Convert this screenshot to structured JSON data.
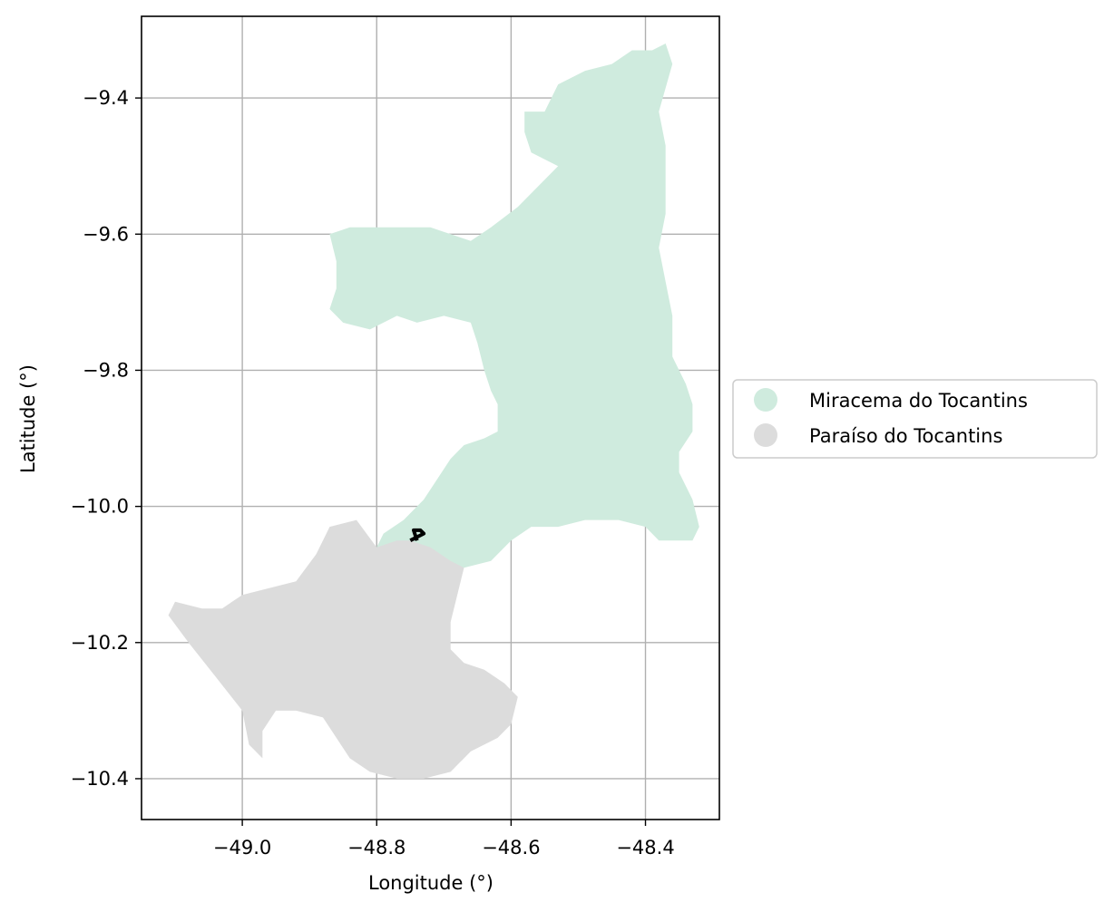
{
  "chart_data": {
    "type": "map",
    "xlabel": "Longitude (°)",
    "ylabel": "Latitude (°)",
    "xlim": [
      -49.15,
      -48.29
    ],
    "ylim": [
      -10.46,
      -9.28
    ],
    "grid": true,
    "xticks": [
      -49.0,
      -48.8,
      -48.6,
      -48.4
    ],
    "xtick_labels": [
      "−49.0",
      "−48.8",
      "−48.6",
      "−48.4"
    ],
    "yticks": [
      -9.4,
      -9.6,
      -9.8,
      -10.0,
      -10.2,
      -10.4
    ],
    "ytick_labels": [
      "−9.4",
      "−9.6",
      "−9.8",
      "−10.0",
      "−10.2",
      "−10.4"
    ],
    "legend_placement": "right, outside axes",
    "series": [
      {
        "name": "Miracema do Tocantins",
        "color": "#cfebde",
        "outline": [
          [
            -48.58,
            -9.42
          ],
          [
            -48.55,
            -9.42
          ],
          [
            -48.53,
            -9.38
          ],
          [
            -48.49,
            -9.36
          ],
          [
            -48.45,
            -9.35
          ],
          [
            -48.42,
            -9.33
          ],
          [
            -48.39,
            -9.33
          ],
          [
            -48.37,
            -9.32
          ],
          [
            -48.36,
            -9.35
          ],
          [
            -48.38,
            -9.42
          ],
          [
            -48.37,
            -9.47
          ],
          [
            -48.37,
            -9.57
          ],
          [
            -48.38,
            -9.62
          ],
          [
            -48.37,
            -9.67
          ],
          [
            -48.36,
            -9.72
          ],
          [
            -48.36,
            -9.78
          ],
          [
            -48.34,
            -9.82
          ],
          [
            -48.33,
            -9.85
          ],
          [
            -48.33,
            -9.89
          ],
          [
            -48.35,
            -9.92
          ],
          [
            -48.35,
            -9.95
          ],
          [
            -48.33,
            -9.99
          ],
          [
            -48.32,
            -10.03
          ],
          [
            -48.33,
            -10.05
          ],
          [
            -48.38,
            -10.05
          ],
          [
            -48.4,
            -10.03
          ],
          [
            -48.44,
            -10.02
          ],
          [
            -48.49,
            -10.02
          ],
          [
            -48.53,
            -10.03
          ],
          [
            -48.57,
            -10.03
          ],
          [
            -48.6,
            -10.05
          ],
          [
            -48.63,
            -10.08
          ],
          [
            -48.67,
            -10.09
          ],
          [
            -48.71,
            -10.08
          ],
          [
            -48.75,
            -10.06
          ],
          [
            -48.8,
            -10.06
          ],
          [
            -48.79,
            -10.04
          ],
          [
            -48.76,
            -10.02
          ],
          [
            -48.73,
            -9.99
          ],
          [
            -48.71,
            -9.96
          ],
          [
            -48.69,
            -9.93
          ],
          [
            -48.67,
            -9.91
          ],
          [
            -48.64,
            -9.9
          ],
          [
            -48.62,
            -9.89
          ],
          [
            -48.62,
            -9.85
          ],
          [
            -48.63,
            -9.83
          ],
          [
            -48.64,
            -9.8
          ],
          [
            -48.65,
            -9.76
          ],
          [
            -48.66,
            -9.73
          ],
          [
            -48.7,
            -9.72
          ],
          [
            -48.74,
            -9.73
          ],
          [
            -48.77,
            -9.72
          ],
          [
            -48.81,
            -9.74
          ],
          [
            -48.85,
            -9.73
          ],
          [
            -48.87,
            -9.71
          ],
          [
            -48.86,
            -9.68
          ],
          [
            -48.86,
            -9.64
          ],
          [
            -48.87,
            -9.6
          ],
          [
            -48.84,
            -9.59
          ],
          [
            -48.78,
            -9.59
          ],
          [
            -48.72,
            -9.59
          ],
          [
            -48.69,
            -9.6
          ],
          [
            -48.66,
            -9.61
          ],
          [
            -48.63,
            -9.59
          ],
          [
            -48.59,
            -9.56
          ],
          [
            -48.55,
            -9.52
          ],
          [
            -48.53,
            -9.5
          ],
          [
            -48.57,
            -9.48
          ],
          [
            -48.58,
            -9.45
          ]
        ]
      },
      {
        "name": "Paraíso do Tocantins",
        "color": "#dcdcdc",
        "outline": [
          [
            -48.8,
            -10.06
          ],
          [
            -48.77,
            -10.05
          ],
          [
            -48.75,
            -10.05
          ],
          [
            -48.72,
            -10.06
          ],
          [
            -48.69,
            -10.08
          ],
          [
            -48.67,
            -10.09
          ],
          [
            -48.68,
            -10.13
          ],
          [
            -48.69,
            -10.17
          ],
          [
            -48.69,
            -10.21
          ],
          [
            -48.67,
            -10.23
          ],
          [
            -48.64,
            -10.24
          ],
          [
            -48.61,
            -10.26
          ],
          [
            -48.59,
            -10.28
          ],
          [
            -48.6,
            -10.32
          ],
          [
            -48.62,
            -10.34
          ],
          [
            -48.66,
            -10.36
          ],
          [
            -48.69,
            -10.39
          ],
          [
            -48.73,
            -10.4
          ],
          [
            -48.77,
            -10.4
          ],
          [
            -48.81,
            -10.39
          ],
          [
            -48.84,
            -10.37
          ],
          [
            -48.86,
            -10.34
          ],
          [
            -48.88,
            -10.31
          ],
          [
            -48.92,
            -10.3
          ],
          [
            -48.95,
            -10.3
          ],
          [
            -48.97,
            -10.33
          ],
          [
            -48.97,
            -10.37
          ],
          [
            -48.99,
            -10.35
          ],
          [
            -49.0,
            -10.3
          ],
          [
            -49.04,
            -10.25
          ],
          [
            -49.08,
            -10.2
          ],
          [
            -49.11,
            -10.16
          ],
          [
            -49.1,
            -10.14
          ],
          [
            -49.06,
            -10.15
          ],
          [
            -49.03,
            -10.15
          ],
          [
            -49.0,
            -10.13
          ],
          [
            -48.96,
            -10.12
          ],
          [
            -48.92,
            -10.11
          ],
          [
            -48.89,
            -10.07
          ],
          [
            -48.87,
            -10.03
          ],
          [
            -48.83,
            -10.02
          ]
        ]
      }
    ],
    "marker": {
      "color": "#000000",
      "points": [
        [
          -48.75,
          -10.05
        ],
        [
          -48.74,
          -10.045
        ],
        [
          -48.73,
          -10.04
        ],
        [
          -48.735,
          -10.035
        ],
        [
          -48.745,
          -10.035
        ],
        [
          -48.74,
          -10.05
        ]
      ]
    }
  }
}
